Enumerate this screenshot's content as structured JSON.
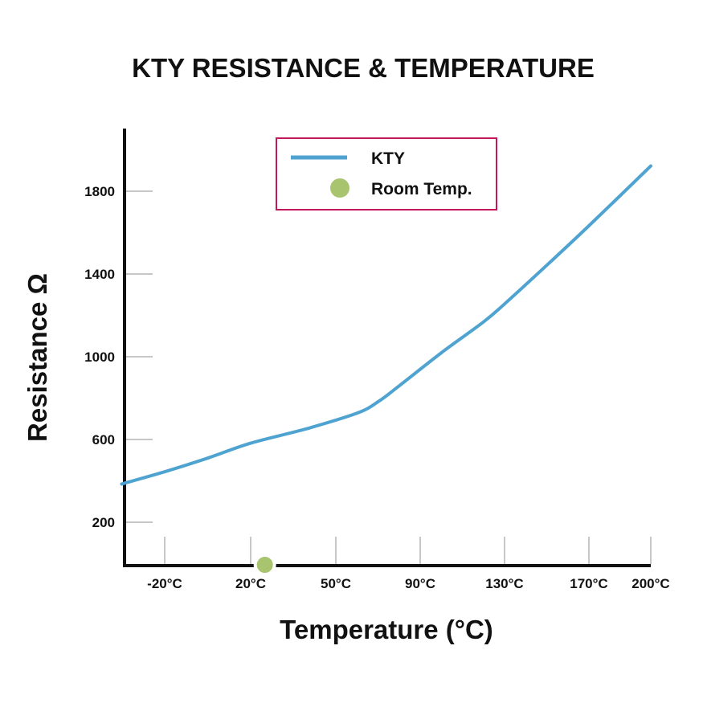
{
  "chart_data": {
    "type": "line",
    "title": "KTY RESISTANCE & TEMPERATURE",
    "xlabel": "Temperature (°C)",
    "ylabel": "Resistance Ω",
    "x_ticks": [
      "-20°C",
      "20°C",
      "50°C",
      "90°C",
      "130°C",
      "170°C",
      "200°C"
    ],
    "y_ticks": [
      "200",
      "600",
      "1000",
      "1400",
      "1800"
    ],
    "series": [
      {
        "name": "KTY",
        "color": "#4fa3d1",
        "points": [
          {
            "x": "-40°C",
            "y": 385
          },
          {
            "x": "-20°C",
            "y": 444
          },
          {
            "x": "0°C",
            "y": 510
          },
          {
            "x": "20°C",
            "y": 582
          },
          {
            "x": "40°C",
            "y": 653
          },
          {
            "x": "60°C",
            "y": 727
          },
          {
            "x": "70°C",
            "y": 782
          },
          {
            "x": "80°C",
            "y": 859
          },
          {
            "x": "100°C",
            "y": 1019
          },
          {
            "x": "120°C",
            "y": 1168
          },
          {
            "x": "130°C",
            "y": 1255
          },
          {
            "x": "150°C",
            "y": 1442
          },
          {
            "x": "170°C",
            "y": 1633
          },
          {
            "x": "200°C",
            "y": 1922
          }
        ]
      },
      {
        "name": "Room Temp.",
        "color": "#a8c46e",
        "points": [
          {
            "x": "25°C",
            "y": 0
          }
        ]
      }
    ],
    "grid": false,
    "legend": "top-center"
  }
}
